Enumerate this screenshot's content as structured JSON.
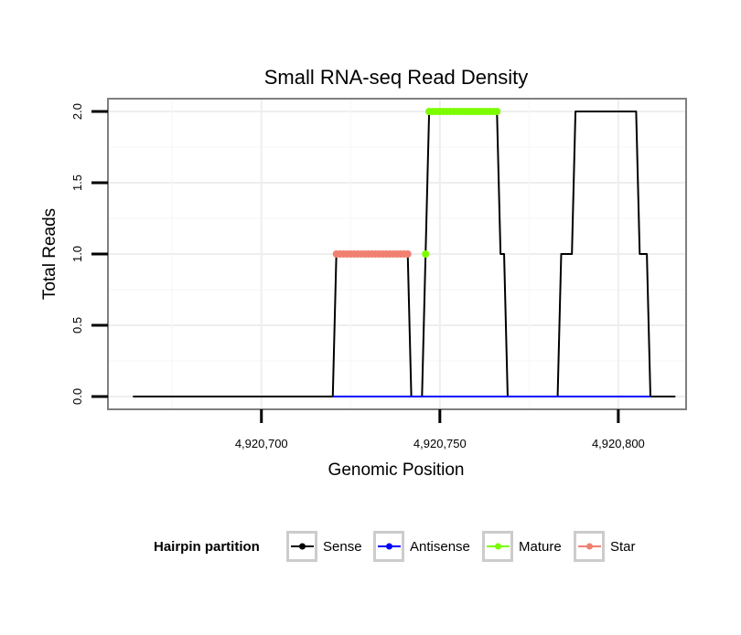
{
  "chart_data": {
    "type": "line",
    "title": "Small RNA-seq Read Density",
    "xlabel": "Genomic Position",
    "ylabel": "Total Reads",
    "xlim": [
      4920657,
      4920819
    ],
    "ylim": [
      -0.09,
      2.09
    ],
    "x_ticks": [
      4920700,
      4920750,
      4920800
    ],
    "x_tick_labels": [
      "4,920,700",
      "4,920,750",
      "4,920,800"
    ],
    "y_ticks": [
      0.0,
      0.5,
      1.0,
      1.5,
      2.0
    ],
    "y_tick_labels": [
      "0.0",
      "0.5",
      "1.0",
      "1.5",
      "2.0"
    ],
    "grid": true,
    "legend": {
      "title": "Hairpin partition",
      "position": "bottom",
      "entries": [
        "Sense",
        "Antisense",
        "Mature",
        "Star"
      ]
    },
    "series": [
      {
        "name": "Sense",
        "color": "#000000",
        "marker": "line",
        "points": [
          [
            4920664,
            0
          ],
          [
            4920720,
            0
          ],
          [
            4920721,
            1
          ],
          [
            4920741,
            1
          ],
          [
            4920742,
            0
          ],
          [
            4920745,
            0
          ],
          [
            4920747,
            2
          ],
          [
            4920766,
            2
          ],
          [
            4920767,
            1
          ],
          [
            4920768,
            1
          ],
          [
            4920769,
            0
          ],
          [
            4920783,
            0
          ],
          [
            4920784,
            1
          ],
          [
            4920787,
            1
          ],
          [
            4920788,
            2
          ],
          [
            4920805,
            2
          ],
          [
            4920806,
            1
          ],
          [
            4920808,
            1
          ],
          [
            4920809,
            0
          ],
          [
            4920816,
            0
          ]
        ]
      },
      {
        "name": "Antisense",
        "color": "#0000ff",
        "marker": "line",
        "points": [
          [
            4920720,
            0
          ],
          [
            4920809,
            0
          ]
        ]
      },
      {
        "name": "Mature",
        "color": "#7cfc00",
        "marker": "points",
        "points": [
          [
            4920746,
            1
          ],
          [
            4920747,
            2
          ],
          [
            4920748,
            2
          ],
          [
            4920749,
            2
          ],
          [
            4920750,
            2
          ],
          [
            4920751,
            2
          ],
          [
            4920752,
            2
          ],
          [
            4920753,
            2
          ],
          [
            4920754,
            2
          ],
          [
            4920755,
            2
          ],
          [
            4920756,
            2
          ],
          [
            4920757,
            2
          ],
          [
            4920758,
            2
          ],
          [
            4920759,
            2
          ],
          [
            4920760,
            2
          ],
          [
            4920761,
            2
          ],
          [
            4920762,
            2
          ],
          [
            4920763,
            2
          ],
          [
            4920764,
            2
          ],
          [
            4920765,
            2
          ],
          [
            4920766,
            2
          ]
        ]
      },
      {
        "name": "Star",
        "color": "#f08070",
        "marker": "points",
        "points": [
          [
            4920721,
            1
          ],
          [
            4920722,
            1
          ],
          [
            4920723,
            1
          ],
          [
            4920724,
            1
          ],
          [
            4920725,
            1
          ],
          [
            4920726,
            1
          ],
          [
            4920727,
            1
          ],
          [
            4920728,
            1
          ],
          [
            4920729,
            1
          ],
          [
            4920730,
            1
          ],
          [
            4920731,
            1
          ],
          [
            4920732,
            1
          ],
          [
            4920733,
            1
          ],
          [
            4920734,
            1
          ],
          [
            4920735,
            1
          ],
          [
            4920736,
            1
          ],
          [
            4920737,
            1
          ],
          [
            4920738,
            1
          ],
          [
            4920739,
            1
          ],
          [
            4920740,
            1
          ],
          [
            4920741,
            1
          ]
        ]
      }
    ]
  }
}
